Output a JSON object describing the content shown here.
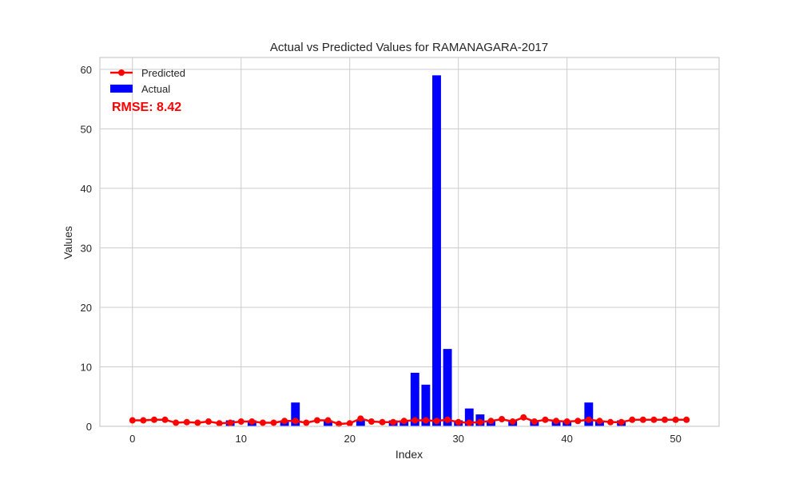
{
  "chart_data": {
    "type": "bar",
    "title": "Actual vs Predicted Values for RAMANAGARA-2017",
    "xlabel": "Index",
    "ylabel": "Values",
    "xlim": [
      -3,
      54
    ],
    "ylim": [
      0,
      62
    ],
    "grid": true,
    "legend": {
      "placement": "top-left",
      "entries": [
        "Predicted",
        "Actual"
      ]
    },
    "annotation": {
      "text": "RMSE: 8.42",
      "color": "#ff0000"
    },
    "x_ticks": [
      0,
      10,
      20,
      30,
      40,
      50
    ],
    "y_ticks": [
      0,
      10,
      20,
      30,
      40,
      50,
      60
    ],
    "x": [
      0,
      1,
      2,
      3,
      4,
      5,
      6,
      7,
      8,
      9,
      10,
      11,
      12,
      13,
      14,
      15,
      16,
      17,
      18,
      19,
      20,
      21,
      22,
      23,
      24,
      25,
      26,
      27,
      28,
      29,
      30,
      31,
      32,
      33,
      34,
      35,
      36,
      37,
      38,
      39,
      40,
      41,
      42,
      43,
      44,
      45,
      46,
      47,
      48,
      49,
      50,
      51
    ],
    "series": [
      {
        "name": "Actual",
        "kind": "bar",
        "color": "#0000ff",
        "values": [
          0,
          0,
          0,
          0,
          0,
          0,
          0,
          0,
          0,
          1,
          0,
          1,
          0,
          0,
          1,
          4,
          0,
          0,
          1,
          0,
          0,
          1,
          0,
          0,
          1,
          1,
          9,
          7,
          59,
          13,
          1,
          3,
          2,
          1,
          0,
          1,
          0,
          1,
          0,
          1,
          1,
          0,
          4,
          1,
          0,
          1,
          0,
          0,
          0,
          0,
          0,
          0
        ]
      },
      {
        "name": "Predicted",
        "kind": "line",
        "color": "#ff0000",
        "values": [
          1.0,
          1.0,
          1.1,
          1.1,
          0.6,
          0.7,
          0.6,
          0.8,
          0.5,
          0.6,
          0.8,
          0.8,
          0.6,
          0.6,
          0.9,
          0.9,
          0.6,
          1.0,
          1.0,
          0.4,
          0.5,
          1.3,
          0.8,
          0.7,
          0.7,
          0.9,
          1.0,
          1.0,
          0.9,
          1.1,
          0.7,
          0.6,
          0.7,
          0.9,
          1.2,
          0.8,
          1.5,
          0.8,
          1.1,
          0.9,
          0.8,
          0.9,
          1.1,
          0.9,
          0.7,
          0.7,
          1.1,
          1.1,
          1.1,
          1.1,
          1.1,
          1.1
        ]
      }
    ]
  }
}
